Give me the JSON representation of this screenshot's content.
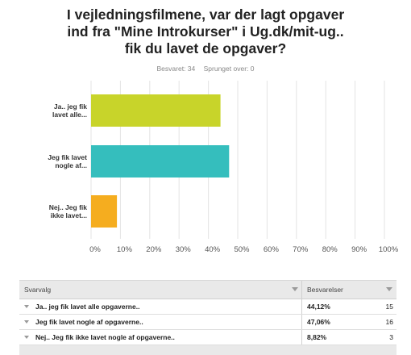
{
  "title_lines": [
    "I vejledningsfilmene, var der lagt opgaver",
    "ind fra \"Mine Introkurser\" i Ug.dk/mit-ug..",
    "fik du lavet de opgaver?"
  ],
  "meta": {
    "answered": "Besvaret: 34",
    "skipped": "Sprunget over: 0"
  },
  "colors": {
    "grid": "#e3e3e3",
    "axis_text": "#555555",
    "bar1": "#c8d42a",
    "bar2": "#35bebd",
    "bar3": "#f5ad1f"
  },
  "chart_data": {
    "type": "bar",
    "orientation": "horizontal",
    "categories": [
      [
        "Ja.. jeg fik",
        "lavet alle..."
      ],
      [
        "Jeg fik lavet",
        "nogle af..."
      ],
      [
        "Nej.. Jeg fik",
        "ikke lavet..."
      ]
    ],
    "values": [
      44.12,
      47.06,
      8.82
    ],
    "xlim": [
      0,
      100
    ],
    "xticks": [
      "0%",
      "10%",
      "20%",
      "30%",
      "40%",
      "50%",
      "60%",
      "70%",
      "80%",
      "90%",
      "100%"
    ],
    "grid": true,
    "title": "I vejledningsfilmene, var der lagt opgaver ind fra \"Mine Introkurser\" i Ug.dk/mit-ug.. fik du lavet de opgaver?"
  },
  "table": {
    "headers": {
      "choice": "Svarvalg",
      "responses": "Besvarelser"
    },
    "rows": [
      {
        "label": "Ja.. jeg fik lavet alle opgaverne..",
        "percent": "44,12%",
        "count": "15"
      },
      {
        "label": "Jeg fik lavet nogle af opgaverne..",
        "percent": "47,06%",
        "count": "16"
      },
      {
        "label": "Nej.. Jeg fik ikke lavet nogle af opgaverne..",
        "percent": "8,82%",
        "count": "3"
      }
    ]
  }
}
